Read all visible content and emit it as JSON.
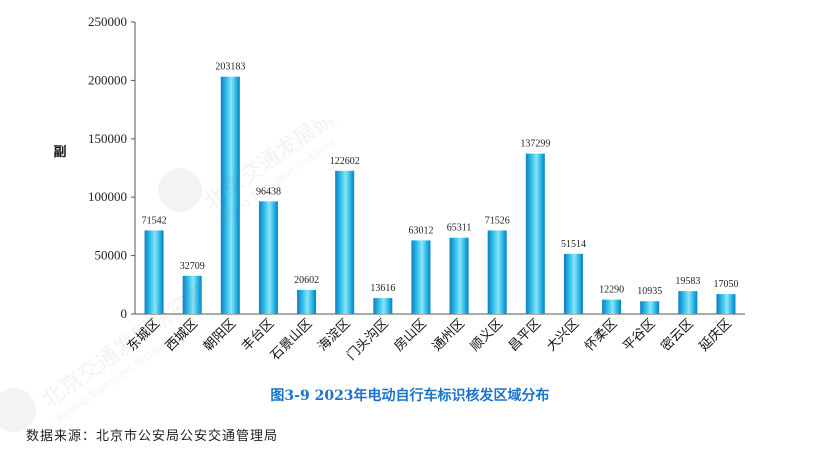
{
  "caption": "图3-9  2023年电动自行车标识核发区域分布",
  "source": "数据来源：北京市公安局公安交通管理局",
  "watermark_text": "北京交通发展研究院",
  "watermark_text_en": "Beijing Transport Institute",
  "colors": {
    "bar_light": "#8fe3f6",
    "bar_mid": "#25b6e6",
    "bar_dark": "#0b7fc2",
    "axis": "#555555",
    "caption": "#1a73c7"
  },
  "chart_data": {
    "type": "bar",
    "title": "",
    "xlabel": "",
    "ylabel": "副",
    "ylim": [
      0,
      250000
    ],
    "yticks": [
      0,
      50000,
      100000,
      150000,
      200000,
      250000
    ],
    "grid": false,
    "categories": [
      "东城区",
      "西城区",
      "朝阳区",
      "丰台区",
      "石景山区",
      "海淀区",
      "门头沟区",
      "房山区",
      "通州区",
      "顺义区",
      "昌平区",
      "大兴区",
      "怀柔区",
      "平谷区",
      "密云区",
      "延庆区"
    ],
    "values": [
      71542,
      32709,
      203183,
      96438,
      20602,
      122602,
      13616,
      63012,
      65311,
      71526,
      137299,
      51514,
      12290,
      10935,
      19583,
      17050
    ]
  }
}
